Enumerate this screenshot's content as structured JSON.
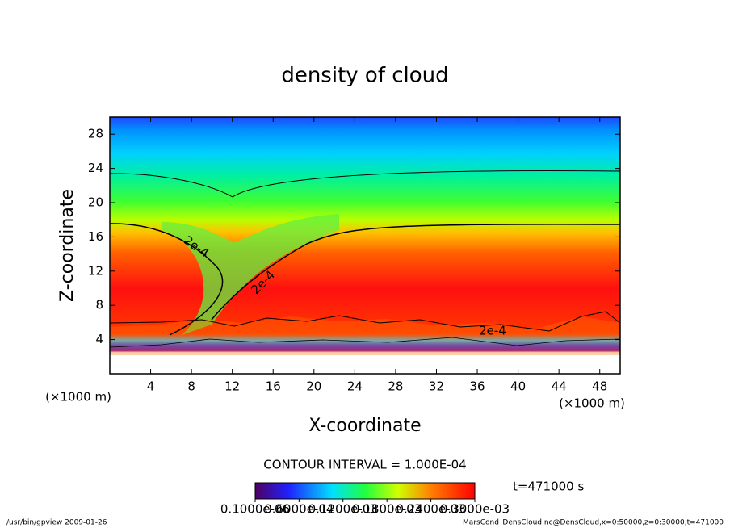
{
  "chart_data": {
    "type": "contour",
    "title": "density of cloud",
    "x_label": "X-coordinate",
    "y_label": "Z-coordinate",
    "x_unit": "(×1000 m)",
    "y_unit": "(×1000 m)",
    "xlim": [
      0,
      50
    ],
    "xticks": [
      4,
      8,
      12,
      16,
      20,
      24,
      28,
      32,
      36,
      40,
      44,
      48
    ],
    "ylim": [
      0,
      30
    ],
    "yticks": [
      4,
      8,
      12,
      16,
      20,
      24,
      28
    ],
    "contour_labels": [
      "2e-4",
      "2e-4",
      "2e-4"
    ],
    "contour_interval": "CONTOUR INTERVAL = 1.000E-04",
    "time_label": "t=471000 s",
    "clim": [
      1e-07,
      0.0003
    ],
    "cticks": [
      {
        "value": 1e-07,
        "label": "0.1000e-06"
      },
      {
        "value": 6e-05,
        "label": "0.6000e-04"
      },
      {
        "value": 0.00012,
        "label": "0.1200e-03"
      },
      {
        "value": 0.00018,
        "label": "0.1800e-03"
      },
      {
        "value": 0.00024,
        "label": "0.2400e-03"
      },
      {
        "value": 0.0003,
        "label": "0.3000e-03"
      }
    ],
    "footer_left": "/usr/bin/gpview  2009-01-26",
    "footer_right": "MarsCond_DensCloud.nc@DensCloud,x=0:50000,z=0:30000,t=471000"
  }
}
